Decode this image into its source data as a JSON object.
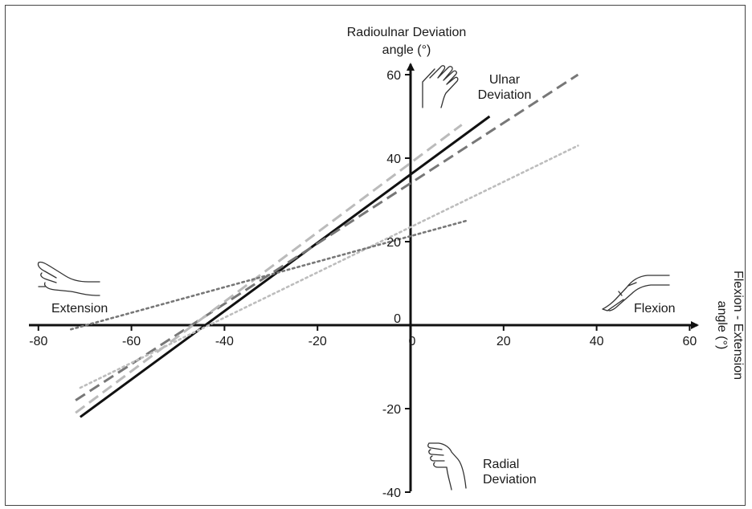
{
  "chart_data": {
    "type": "line",
    "title": "",
    "ylabel_lines": [
      "Radioulnar Deviation",
      "angle (°)"
    ],
    "xlabel_lines": [
      "Flexion - Extension",
      "angle (°)"
    ],
    "xlim": [
      -80,
      60
    ],
    "ylim": [
      -40,
      60
    ],
    "xticks": [
      "-80",
      "-60",
      "-40",
      "-20",
      "0",
      "20",
      "40",
      "60"
    ],
    "yticks": [
      "-40",
      "-20",
      "0",
      "20",
      "40",
      "60"
    ],
    "quadrant_labels": {
      "ulnar": [
        "Ulnar",
        "Deviation"
      ],
      "radial": [
        "Radial",
        "Deviation"
      ],
      "extension": "Extension",
      "flexion": "Flexion"
    },
    "series": [
      {
        "x": [
          -71,
          17
        ],
        "y": [
          -22,
          50
        ],
        "color": "#111111",
        "style": "solid"
      },
      {
        "x": [
          -72,
          36
        ],
        "y": [
          -18,
          60
        ],
        "color": "#777777",
        "style": "dash"
      },
      {
        "x": [
          -72,
          11
        ],
        "y": [
          -21,
          48
        ],
        "color": "#bbbbbb",
        "style": "dash"
      },
      {
        "x": [
          -71,
          36
        ],
        "y": [
          -15,
          43
        ],
        "color": "#bdbdbd",
        "style": "dot"
      },
      {
        "x": [
          -73,
          12
        ],
        "y": [
          -1,
          25
        ],
        "color": "#777777",
        "style": "dot"
      }
    ]
  }
}
